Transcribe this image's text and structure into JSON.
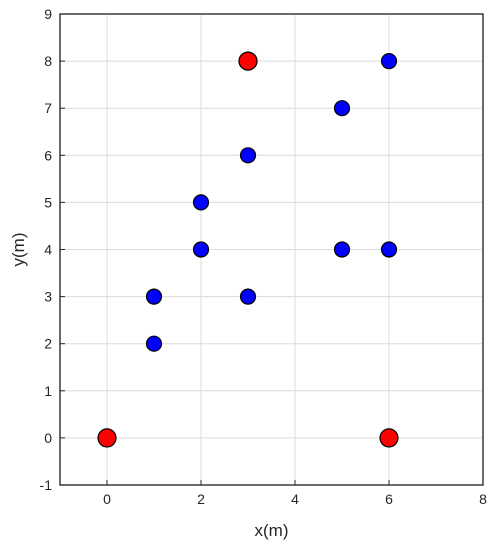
{
  "chart_data": {
    "type": "scatter",
    "title": "",
    "xlabel": "x(m)",
    "ylabel": "y(m)",
    "xlim": [
      -1,
      8
    ],
    "ylim": [
      -1,
      9
    ],
    "xticks": [
      0,
      2,
      4,
      6,
      8
    ],
    "yticks": [
      -1,
      0,
      1,
      2,
      3,
      4,
      5,
      6,
      7,
      8,
      9
    ],
    "grid": true,
    "series": [
      {
        "color": "#0000ff",
        "marker": "circle",
        "points": [
          {
            "x": 6,
            "y": 8
          },
          {
            "x": 5,
            "y": 7
          },
          {
            "x": 3,
            "y": 6
          },
          {
            "x": 2,
            "y": 5
          },
          {
            "x": 2,
            "y": 4
          },
          {
            "x": 5,
            "y": 4
          },
          {
            "x": 6,
            "y": 4
          },
          {
            "x": 1,
            "y": 3
          },
          {
            "x": 3,
            "y": 3
          },
          {
            "x": 1,
            "y": 2
          }
        ]
      },
      {
        "color": "#ff0000",
        "marker": "circle-large",
        "points": [
          {
            "x": 3,
            "y": 8
          },
          {
            "x": 0,
            "y": 0
          },
          {
            "x": 6,
            "y": 0
          }
        ]
      }
    ]
  }
}
